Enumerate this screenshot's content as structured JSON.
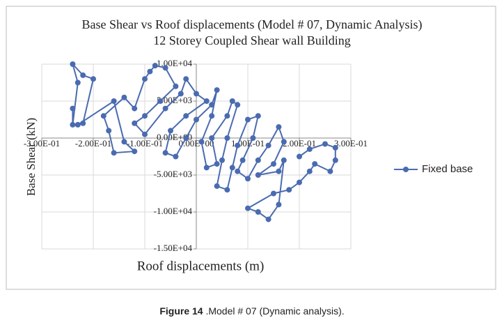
{
  "chart_data": {
    "type": "scatter",
    "title": "Base Shear vs Roof displacements (Model # 07, Dynamic Analysis)",
    "subtitle": "12  Storey Coupled Shear wall Building",
    "x_label": "Roof displacements (m)",
    "y_label": "Base Shear (kN)",
    "caption_label": "Figure 14",
    "caption_text": " .Model # 07 (Dynamic analysis).",
    "legend": "right",
    "grid": true,
    "xlim": [
      -0.3,
      0.3
    ],
    "ylim": [
      -15000,
      10000
    ],
    "xticks": [
      {
        "value": -0.3,
        "label": "-3.00E-01"
      },
      {
        "value": -0.2,
        "label": "-2.00E-01"
      },
      {
        "value": -0.1,
        "label": "-1.00E-01"
      },
      {
        "value": 0,
        "label": "0.00E+00"
      },
      {
        "value": 0.1,
        "label": "1.00E-01"
      },
      {
        "value": 0.2,
        "label": "2.00E-01"
      },
      {
        "value": 0.3,
        "label": "3.00E-01"
      }
    ],
    "yticks": [
      {
        "value": -15000,
        "label": "-1.50E+04"
      },
      {
        "value": -10000,
        "label": "-1.00E+04"
      },
      {
        "value": -5000,
        "label": "-5.00E+03"
      },
      {
        "value": 0,
        "label": "0.00E+00"
      },
      {
        "value": 5000,
        "label": "5.00E+03"
      },
      {
        "value": 10000,
        "label": "1.00E+04"
      }
    ],
    "series": [
      {
        "name": "Fixed base",
        "color": "#4a6bb0",
        "x": [
          -0.24,
          -0.24,
          -0.23,
          -0.24,
          -0.22,
          -0.2,
          -0.22,
          -0.23,
          -0.16,
          -0.14,
          -0.12,
          -0.16,
          -0.17,
          -0.18,
          -0.14,
          -0.12,
          -0.1,
          -0.09,
          -0.08,
          -0.06,
          -0.04,
          -0.07,
          -0.1,
          -0.12,
          -0.1,
          -0.06,
          -0.03,
          -0.02,
          0.0,
          0.02,
          -0.02,
          -0.05,
          -0.06,
          -0.04,
          -0.02,
          0.0,
          0.03,
          0.04,
          0.03,
          0.01,
          0.02,
          0.04,
          0.03,
          0.06,
          0.07,
          0.08,
          0.06,
          0.05,
          0.04,
          0.06,
          0.07,
          0.08,
          0.1,
          0.12,
          0.11,
          0.09,
          0.08,
          0.1,
          0.12,
          0.14,
          0.16,
          0.17,
          0.15,
          0.12,
          0.16,
          0.17,
          0.16,
          0.14,
          0.12,
          0.1,
          0.15,
          0.18,
          0.2,
          0.22,
          0.23,
          0.26,
          0.27,
          0.27,
          0.25,
          0.22,
          0.2
        ],
        "values": [
          4000,
          1800,
          7500,
          10000,
          8500,
          8000,
          2000,
          1800,
          5000,
          -500,
          -1800,
          -2000,
          1000,
          3000,
          5500,
          4000,
          8000,
          9000,
          9800,
          9500,
          7000,
          5000,
          3000,
          2000,
          500,
          4000,
          6000,
          8000,
          6000,
          5000,
          3000,
          1000,
          -2000,
          -2500,
          0,
          2500,
          4500,
          6500,
          3000,
          -500,
          -4000,
          -3500,
          0,
          3000,
          5000,
          4500,
          0,
          -3000,
          -6500,
          -7000,
          -4000,
          -1000,
          2500,
          3000,
          0,
          -3000,
          -4500,
          -5500,
          -3000,
          -1000,
          1500,
          -500,
          -3500,
          -5000,
          -4500,
          -3000,
          -9000,
          -11000,
          -10000,
          -9500,
          -7500,
          -7000,
          -6000,
          -4500,
          -3500,
          -4500,
          -3000,
          -1300,
          -800,
          -1500,
          -2500
        ]
      }
    ]
  }
}
